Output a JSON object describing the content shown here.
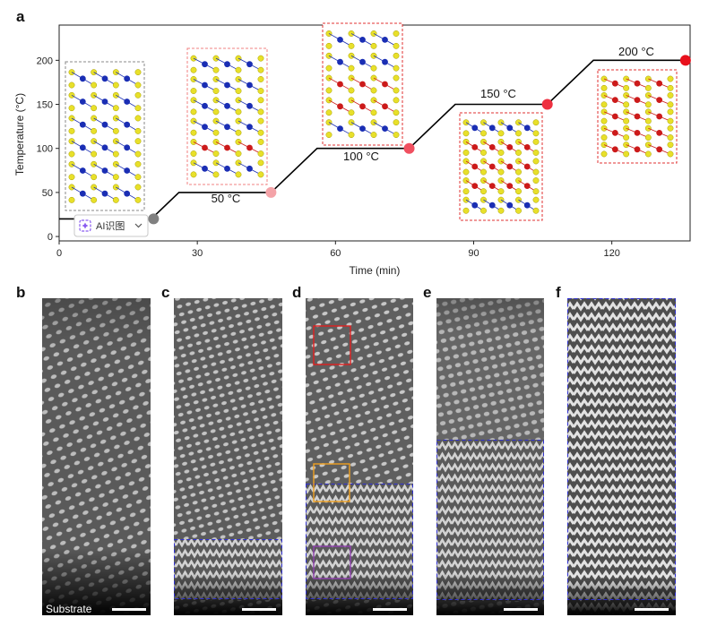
{
  "chart_data": {
    "type": "line",
    "panel_label": "a",
    "xlabel": "Time (min)",
    "ylabel": "Temperature (°C)",
    "xlim": [
      0,
      137
    ],
    "ylim": [
      -5,
      240
    ],
    "xticks": [
      0,
      30,
      60,
      90,
      120
    ],
    "yticks": [
      0,
      50,
      100,
      150,
      200
    ],
    "series": [
      {
        "x": [
          0,
          20,
          26,
          46,
          56,
          76,
          86,
          106,
          116,
          136
        ],
        "y": [
          20,
          20,
          50,
          50,
          100,
          100,
          150,
          150,
          200,
          200
        ],
        "color": "#000000"
      }
    ],
    "markers": [
      {
        "x": 20.5,
        "y": 20,
        "color": "#808080"
      },
      {
        "x": 46,
        "y": 50,
        "color": "#f4a3a8"
      },
      {
        "x": 76,
        "y": 100,
        "color": "#f05060"
      },
      {
        "x": 106,
        "y": 150,
        "color": "#ee3040"
      },
      {
        "x": 136,
        "y": 200,
        "color": "#e8101c"
      }
    ],
    "annotations": [
      "50 °C",
      "100 °C",
      "150 °C",
      "200 °C"
    ],
    "grid": false
  },
  "badge": {
    "icon": "ai-icon",
    "text": "AI识图",
    "arrow": "chevron-down-icon"
  },
  "panels": [
    {
      "label": "b",
      "caption": "Substrate"
    },
    {
      "label": "c"
    },
    {
      "label": "d"
    },
    {
      "label": "e"
    },
    {
      "label": "f"
    }
  ],
  "colors": {
    "sulfur": "#e8e02a",
    "metal_blue": "#1a2eb4",
    "metal_red": "#cc1a1a",
    "box_gray": "#888888",
    "box_pink": "#f08080",
    "box_red": "#e03030",
    "roi_red": "#e02020",
    "roi_orange": "#f0a020",
    "roi_purple": "#9040b0",
    "roi_blue": "#3030d0"
  }
}
